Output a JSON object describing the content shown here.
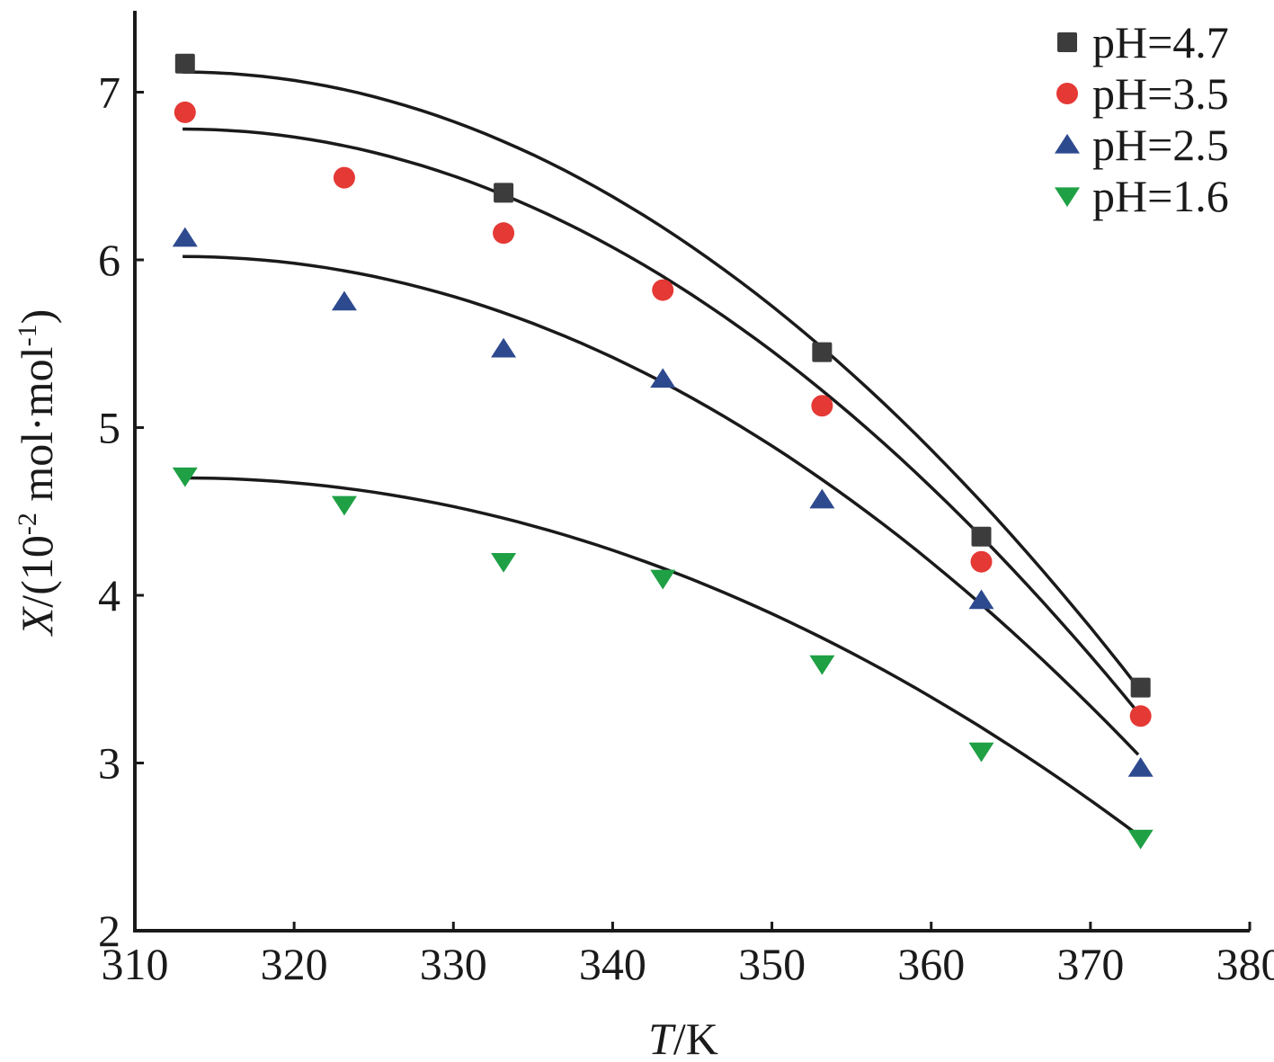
{
  "chart_data": {
    "type": "scatter",
    "title": "",
    "xlabel_italic": "T",
    "xlabel_rest": "/K",
    "ylabel_italic": "X",
    "ylabel_rest_a": "/(10",
    "ylabel_sup_a": "-2",
    "ylabel_rest_b": " mol·mol",
    "ylabel_sup_b": "-1",
    "ylabel_rest_c": ")",
    "xlim": [
      310,
      380
    ],
    "ylim": [
      2,
      7.5
    ],
    "xticks": [
      310,
      320,
      330,
      340,
      350,
      360,
      370,
      380
    ],
    "xtick_labels": [
      "310",
      "320",
      "330",
      "340",
      "350",
      "360",
      "370",
      "380"
    ],
    "yticks": [
      2,
      3,
      4,
      5,
      6,
      7
    ],
    "ytick_labels": [
      "2",
      "3",
      "4",
      "5",
      "6",
      "7"
    ],
    "grid": false,
    "legend_position": "top-right",
    "series": [
      {
        "name": "pH=4.7",
        "marker": "square",
        "color": "#3c3c3c",
        "x": [
          313.15,
          333.15,
          353.15,
          363.15,
          373.15
        ],
        "y": [
          7.17,
          6.4,
          5.45,
          4.35,
          3.45
        ],
        "fit_x": [
          313,
          373
        ],
        "fit_y": [
          7.12,
          3.45
        ]
      },
      {
        "name": "pH=3.5",
        "marker": "circle",
        "color": "#e53935",
        "x": [
          313.15,
          323.15,
          333.15,
          343.15,
          353.15,
          363.15,
          373.15
        ],
        "y": [
          6.88,
          6.49,
          6.16,
          5.82,
          5.13,
          4.2,
          3.28
        ],
        "fit_x": [
          313,
          373
        ],
        "fit_y": [
          6.78,
          3.3
        ]
      },
      {
        "name": "pH=2.5",
        "marker": "triangle-up",
        "color": "#2e4a8f",
        "x": [
          313.15,
          323.15,
          333.15,
          343.15,
          353.15,
          363.15,
          373.15
        ],
        "y": [
          6.13,
          5.75,
          5.47,
          5.29,
          4.57,
          3.97,
          2.97
        ],
        "fit_x": [
          313,
          373
        ],
        "fit_y": [
          6.02,
          3.05
        ]
      },
      {
        "name": "pH=1.6",
        "marker": "triangle-down",
        "color": "#1fa045",
        "x": [
          313.15,
          323.15,
          333.15,
          343.15,
          353.15,
          363.15,
          373.15
        ],
        "y": [
          4.71,
          4.54,
          4.2,
          4.1,
          3.59,
          3.07,
          2.55
        ],
        "fit_x": [
          313,
          373
        ],
        "fit_y": [
          4.7,
          2.57
        ]
      }
    ]
  }
}
